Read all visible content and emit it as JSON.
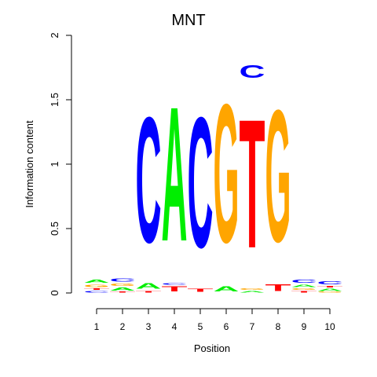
{
  "chart_data": {
    "type": "sequence-logo",
    "title": "MNT",
    "xlabel": "Position",
    "ylabel": "Information content",
    "ylim": [
      0,
      2
    ],
    "yticks": [
      "0",
      "0.5",
      "1",
      "1.5",
      "2"
    ],
    "positions": [
      "1",
      "2",
      "3",
      "4",
      "5",
      "6",
      "7",
      "8",
      "9",
      "10"
    ],
    "colors": {
      "A": "#00ee00",
      "C": "#0000ff",
      "G": "#ffa500",
      "T": "#ff0000"
    },
    "columns": [
      [
        {
          "letter": "C",
          "height": 0.02
        },
        {
          "letter": "T",
          "height": 0.02
        },
        {
          "letter": "G",
          "height": 0.03
        },
        {
          "letter": "A",
          "height": 0.04
        }
      ],
      [
        {
          "letter": "T",
          "height": 0.01
        },
        {
          "letter": "A",
          "height": 0.04
        },
        {
          "letter": "G",
          "height": 0.03
        },
        {
          "letter": "C",
          "height": 0.04
        }
      ],
      [
        {
          "letter": "T",
          "height": 0.02
        },
        {
          "letter": "A",
          "height": 0.07
        },
        {
          "letter": "C",
          "height": 1.56
        }
      ],
      [
        {
          "letter": "T",
          "height": 0.06
        },
        {
          "letter": "C",
          "height": 0.02
        },
        {
          "letter": "A",
          "height": 1.67
        }
      ],
      [
        {
          "letter": "T",
          "height": 0.04
        },
        {
          "letter": "C",
          "height": 1.62
        }
      ],
      [
        {
          "letter": "A",
          "height": 0.06
        },
        {
          "letter": "G",
          "height": 1.72
        }
      ],
      [
        {
          "letter": "A",
          "height": 0.02
        },
        {
          "letter": "G",
          "height": 0.02
        },
        {
          "letter": "T",
          "height": 1.6
        },
        {
          "letter": "C",
          "height": 0.16
        }
      ],
      [
        {
          "letter": "T",
          "height": 0.08
        },
        {
          "letter": "G",
          "height": 1.64
        }
      ],
      [
        {
          "letter": "T",
          "height": 0.02
        },
        {
          "letter": "G",
          "height": 0.02
        },
        {
          "letter": "A",
          "height": 0.03
        },
        {
          "letter": "C",
          "height": 0.04
        }
      ],
      [
        {
          "letter": "G",
          "height": 0.01
        },
        {
          "letter": "A",
          "height": 0.03
        },
        {
          "letter": "T",
          "height": 0.02
        },
        {
          "letter": "C",
          "height": 0.04
        }
      ]
    ]
  }
}
